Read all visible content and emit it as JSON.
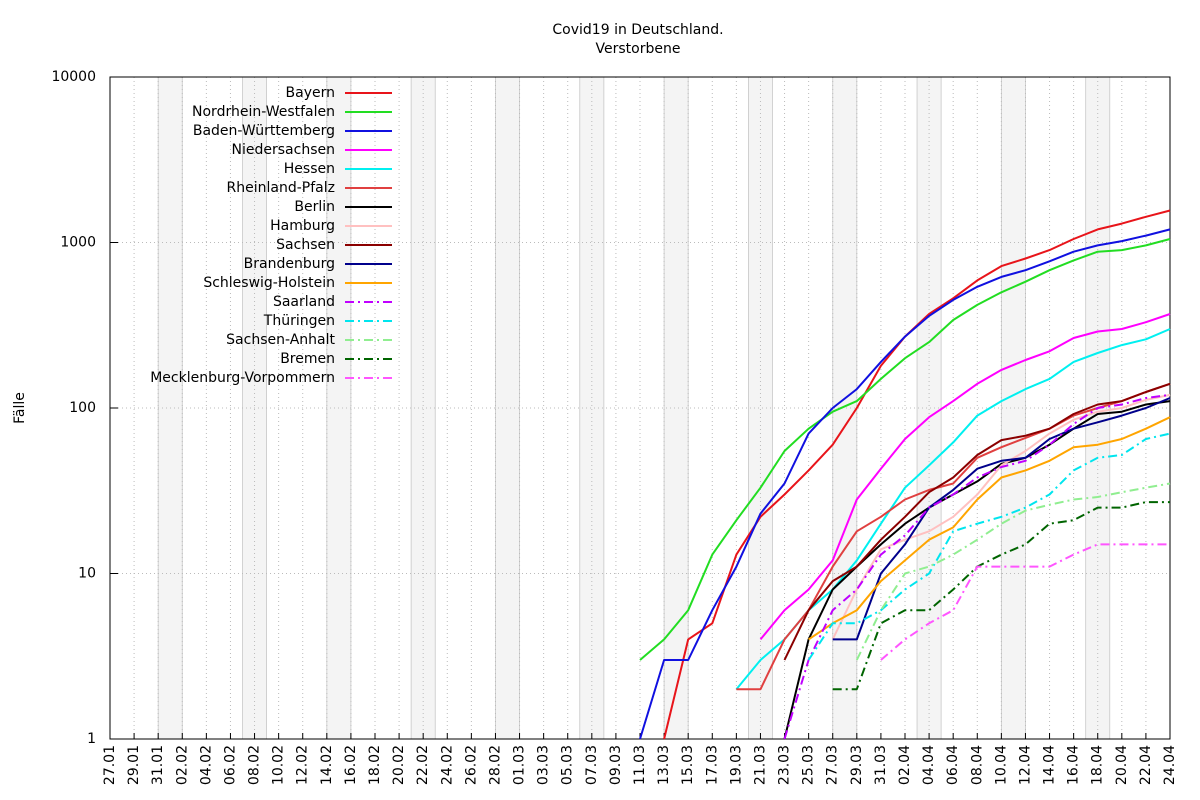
{
  "chart_data": {
    "type": "line",
    "title": "Covid19 in Deutschland.",
    "subtitle": "Verstorbene",
    "y_label": "Fälle",
    "log_y": true,
    "grid": true,
    "legend": "upper left",
    "ylim": [
      1,
      10000
    ],
    "yticks": [
      1,
      10,
      100,
      1000,
      10000
    ],
    "categories": [
      "27.01",
      "29.01",
      "31.01",
      "02.02",
      "04.02",
      "06.02",
      "08.02",
      "10.02",
      "12.02",
      "14.02",
      "16.02",
      "18.02",
      "20.02",
      "22.02",
      "24.02",
      "26.02",
      "28.02",
      "01.03",
      "03.03",
      "05.03",
      "07.03",
      "09.03",
      "11.03",
      "13.03",
      "15.03",
      "17.03",
      "19.03",
      "21.03",
      "23.03",
      "25.03",
      "27.03",
      "29.03",
      "31.03",
      "02.04",
      "04.04",
      "06.04",
      "08.04",
      "10.04",
      "12.04",
      "14.04",
      "16.04",
      "18.04",
      "20.04",
      "22.04",
      "24.04"
    ],
    "series": [
      {
        "name": "Bayern",
        "color": "#e8141a",
        "dashed": false,
        "values": [
          null,
          null,
          null,
          null,
          null,
          null,
          null,
          null,
          null,
          null,
          null,
          null,
          null,
          null,
          null,
          null,
          null,
          null,
          null,
          null,
          null,
          null,
          null,
          1,
          4,
          5,
          13,
          22,
          30,
          42,
          60,
          100,
          180,
          270,
          370,
          460,
          590,
          720,
          800,
          900,
          1050,
          1200,
          1300,
          1430,
          1560
        ]
      },
      {
        "name": "Nordrhein-Westfalen",
        "color": "#22dd22",
        "dashed": false,
        "values": [
          null,
          null,
          null,
          null,
          null,
          null,
          null,
          null,
          null,
          null,
          null,
          null,
          null,
          null,
          null,
          null,
          null,
          null,
          null,
          null,
          null,
          null,
          3,
          4,
          6,
          13,
          21,
          33,
          55,
          75,
          95,
          110,
          150,
          200,
          250,
          340,
          420,
          500,
          580,
          680,
          780,
          880,
          900,
          960,
          1050
        ]
      },
      {
        "name": "Baden-Württemberg",
        "color": "#1010e0",
        "dashed": false,
        "values": [
          null,
          null,
          null,
          null,
          null,
          null,
          null,
          null,
          null,
          null,
          null,
          null,
          null,
          null,
          null,
          null,
          null,
          null,
          null,
          null,
          null,
          null,
          1,
          3,
          3,
          6,
          11,
          23,
          35,
          70,
          100,
          130,
          190,
          270,
          360,
          450,
          540,
          620,
          680,
          770,
          880,
          960,
          1020,
          1100,
          1200
        ]
      },
      {
        "name": "Niedersachsen",
        "color": "#ff00ff",
        "dashed": false,
        "values": [
          null,
          null,
          null,
          null,
          null,
          null,
          null,
          null,
          null,
          null,
          null,
          null,
          null,
          null,
          null,
          null,
          null,
          null,
          null,
          null,
          null,
          null,
          null,
          null,
          null,
          null,
          null,
          4,
          6,
          8,
          12,
          28,
          43,
          65,
          88,
          110,
          140,
          170,
          195,
          220,
          265,
          290,
          300,
          330,
          370
        ]
      },
      {
        "name": "Hessen",
        "color": "#00f0f0",
        "dashed": false,
        "values": [
          null,
          null,
          null,
          null,
          null,
          null,
          null,
          null,
          null,
          null,
          null,
          null,
          null,
          null,
          null,
          null,
          null,
          null,
          null,
          null,
          null,
          null,
          null,
          null,
          null,
          null,
          2,
          3,
          4,
          6,
          8,
          12,
          20,
          33,
          45,
          62,
          90,
          110,
          130,
          150,
          190,
          215,
          240,
          260,
          300
        ]
      },
      {
        "name": "Rheinland-Pfalz",
        "color": "#e04040",
        "dashed": false,
        "values": [
          null,
          null,
          null,
          null,
          null,
          null,
          null,
          null,
          null,
          null,
          null,
          null,
          null,
          null,
          null,
          null,
          null,
          null,
          null,
          null,
          null,
          null,
          null,
          null,
          null,
          null,
          2,
          2,
          4,
          6,
          11,
          18,
          22,
          28,
          32,
          35,
          50,
          58,
          66,
          75,
          90,
          100,
          110,
          125,
          140
        ]
      },
      {
        "name": "Berlin",
        "color": "#000000",
        "dashed": false,
        "values": [
          null,
          null,
          null,
          null,
          null,
          null,
          null,
          null,
          null,
          null,
          null,
          null,
          null,
          null,
          null,
          null,
          null,
          null,
          null,
          null,
          null,
          null,
          null,
          null,
          null,
          null,
          null,
          null,
          1,
          4,
          8,
          11,
          15,
          20,
          25,
          30,
          36,
          46,
          50,
          60,
          75,
          92,
          95,
          105,
          110
        ]
      },
      {
        "name": "Hamburg",
        "color": "#ffc0c0",
        "dashed": false,
        "values": [
          null,
          null,
          null,
          null,
          null,
          null,
          null,
          null,
          null,
          null,
          null,
          null,
          null,
          null,
          null,
          null,
          null,
          null,
          null,
          null,
          null,
          null,
          null,
          null,
          null,
          null,
          null,
          null,
          null,
          null,
          4,
          8,
          14,
          16,
          18,
          22,
          30,
          45,
          55,
          70,
          85,
          95,
          100,
          112,
          120
        ]
      },
      {
        "name": "Sachsen",
        "color": "#8b0000",
        "dashed": false,
        "values": [
          null,
          null,
          null,
          null,
          null,
          null,
          null,
          null,
          null,
          null,
          null,
          null,
          null,
          null,
          null,
          null,
          null,
          null,
          null,
          null,
          null,
          null,
          null,
          null,
          null,
          null,
          null,
          null,
          3,
          6,
          9,
          11,
          16,
          22,
          31,
          38,
          52,
          64,
          68,
          75,
          92,
          105,
          110,
          125,
          140
        ]
      },
      {
        "name": "Brandenburg",
        "color": "#00008b",
        "dashed": false,
        "values": [
          null,
          null,
          null,
          null,
          null,
          null,
          null,
          null,
          null,
          null,
          null,
          null,
          null,
          null,
          null,
          null,
          null,
          null,
          null,
          null,
          null,
          null,
          null,
          null,
          null,
          null,
          null,
          null,
          null,
          null,
          4,
          4,
          10,
          15,
          25,
          32,
          43,
          48,
          50,
          65,
          75,
          82,
          90,
          100,
          115
        ]
      },
      {
        "name": "Schleswig-Holstein",
        "color": "#ffa500",
        "dashed": false,
        "values": [
          null,
          null,
          null,
          null,
          null,
          null,
          null,
          null,
          null,
          null,
          null,
          null,
          null,
          null,
          null,
          null,
          null,
          null,
          null,
          null,
          null,
          null,
          null,
          null,
          null,
          null,
          null,
          null,
          null,
          4,
          5,
          6,
          9,
          12,
          16,
          19,
          28,
          38,
          42,
          48,
          58,
          60,
          65,
          75,
          88
        ]
      },
      {
        "name": "Saarland",
        "color": "#c000ff",
        "dashed": true,
        "values": [
          null,
          null,
          null,
          null,
          null,
          null,
          null,
          null,
          null,
          null,
          null,
          null,
          null,
          null,
          null,
          null,
          null,
          null,
          null,
          null,
          null,
          null,
          null,
          null,
          null,
          null,
          null,
          null,
          1,
          3,
          6,
          8,
          13,
          17,
          25,
          30,
          38,
          44,
          48,
          60,
          80,
          100,
          105,
          115,
          120
        ]
      },
      {
        "name": "Thüringen",
        "color": "#00e5ee",
        "dashed": true,
        "values": [
          null,
          null,
          null,
          null,
          null,
          null,
          null,
          null,
          null,
          null,
          null,
          null,
          null,
          null,
          null,
          null,
          null,
          null,
          null,
          null,
          null,
          null,
          null,
          null,
          null,
          null,
          null,
          null,
          null,
          3,
          5,
          5,
          6,
          8,
          10,
          18,
          20,
          22,
          25,
          30,
          42,
          50,
          52,
          65,
          70
        ]
      },
      {
        "name": "Sachsen-Anhalt",
        "color": "#90ee90",
        "dashed": true,
        "values": [
          null,
          null,
          null,
          null,
          null,
          null,
          null,
          null,
          null,
          null,
          null,
          null,
          null,
          null,
          null,
          null,
          null,
          null,
          null,
          null,
          null,
          null,
          null,
          null,
          null,
          null,
          null,
          null,
          null,
          null,
          null,
          3,
          6,
          10,
          11,
          13,
          16,
          20,
          24,
          26,
          28,
          29,
          31,
          33,
          35
        ]
      },
      {
        "name": "Bremen",
        "color": "#006400",
        "dashed": true,
        "values": [
          null,
          null,
          null,
          null,
          null,
          null,
          null,
          null,
          null,
          null,
          null,
          null,
          null,
          null,
          null,
          null,
          null,
          null,
          null,
          null,
          null,
          null,
          null,
          null,
          null,
          null,
          null,
          null,
          null,
          null,
          2,
          2,
          5,
          6,
          6,
          8,
          11,
          13,
          15,
          20,
          21,
          25,
          25,
          27,
          27
        ]
      },
      {
        "name": "Mecklenburg-Vorpommern",
        "color": "#ff55ff",
        "dashed": true,
        "values": [
          null,
          null,
          null,
          null,
          null,
          null,
          null,
          null,
          null,
          null,
          null,
          null,
          null,
          null,
          null,
          null,
          null,
          null,
          null,
          null,
          null,
          null,
          null,
          null,
          null,
          null,
          null,
          null,
          null,
          null,
          null,
          null,
          3,
          4,
          5,
          6,
          11,
          11,
          11,
          11,
          13,
          15,
          15,
          15,
          15
        ]
      }
    ]
  }
}
